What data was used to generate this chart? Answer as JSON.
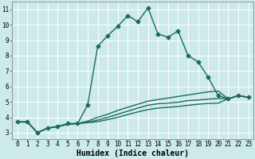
{
  "xlabel": "Humidex (Indice chaleur)",
  "ylabel": "",
  "bg_color": "#cceaea",
  "grid_color": "#ffffff",
  "line_color": "#1a6b5a",
  "xlim": [
    -0.5,
    23.5
  ],
  "ylim": [
    2.6,
    11.5
  ],
  "xticks": [
    0,
    1,
    2,
    3,
    4,
    5,
    6,
    7,
    8,
    9,
    10,
    11,
    12,
    13,
    14,
    15,
    16,
    17,
    18,
    19,
    20,
    21,
    22,
    23
  ],
  "yticks": [
    3,
    4,
    5,
    6,
    7,
    8,
    9,
    10,
    11
  ],
  "series": [
    {
      "x": [
        0,
        1,
        2,
        3,
        4,
        5,
        6,
        7,
        8,
        9,
        10,
        11,
        12,
        13,
        14,
        15,
        16,
        17,
        18,
        19,
        20,
        21,
        22,
        23
      ],
      "y": [
        3.7,
        3.7,
        3.0,
        3.3,
        3.4,
        3.6,
        3.6,
        4.8,
        8.6,
        9.3,
        9.9,
        10.6,
        10.2,
        11.1,
        9.4,
        9.2,
        9.6,
        8.0,
        7.6,
        6.6,
        5.4,
        5.2,
        5.4,
        5.3
      ],
      "marker": "D",
      "markersize": 2.5,
      "linewidth": 1.0,
      "linestyle": "-"
    },
    {
      "x": [
        0,
        1,
        2,
        3,
        4,
        5,
        6,
        7,
        8,
        9,
        10,
        11,
        12,
        13,
        14,
        15,
        16,
        17,
        18,
        19,
        20,
        21,
        22,
        23
      ],
      "y": [
        3.7,
        3.7,
        3.0,
        3.3,
        3.4,
        3.55,
        3.6,
        3.75,
        4.0,
        4.2,
        4.45,
        4.65,
        4.85,
        5.05,
        5.15,
        5.25,
        5.35,
        5.45,
        5.55,
        5.65,
        5.7,
        5.2,
        5.4,
        5.3
      ],
      "marker": null,
      "markersize": 0,
      "linewidth": 1.0,
      "linestyle": "-"
    },
    {
      "x": [
        0,
        1,
        2,
        3,
        4,
        5,
        6,
        7,
        8,
        9,
        10,
        11,
        12,
        13,
        14,
        15,
        16,
        17,
        18,
        19,
        20,
        21,
        22,
        23
      ],
      "y": [
        3.7,
        3.7,
        3.0,
        3.3,
        3.4,
        3.55,
        3.6,
        3.68,
        3.82,
        4.0,
        4.2,
        4.4,
        4.6,
        4.78,
        4.88,
        4.92,
        4.98,
        5.08,
        5.12,
        5.18,
        5.22,
        5.2,
        5.4,
        5.3
      ],
      "marker": null,
      "markersize": 0,
      "linewidth": 1.0,
      "linestyle": "-"
    },
    {
      "x": [
        0,
        1,
        2,
        3,
        4,
        5,
        6,
        7,
        8,
        9,
        10,
        11,
        12,
        13,
        14,
        15,
        16,
        17,
        18,
        19,
        20,
        21,
        22,
        23
      ],
      "y": [
        3.7,
        3.7,
        3.0,
        3.3,
        3.4,
        3.55,
        3.6,
        3.65,
        3.72,
        3.85,
        4.0,
        4.18,
        4.35,
        4.5,
        4.6,
        4.65,
        4.7,
        4.78,
        4.85,
        4.9,
        4.92,
        5.2,
        5.4,
        5.3
      ],
      "marker": null,
      "markersize": 0,
      "linewidth": 1.0,
      "linestyle": "-"
    }
  ],
  "tick_fontsize": 5.5,
  "xlabel_fontsize": 7.0,
  "font_family": "monospace"
}
